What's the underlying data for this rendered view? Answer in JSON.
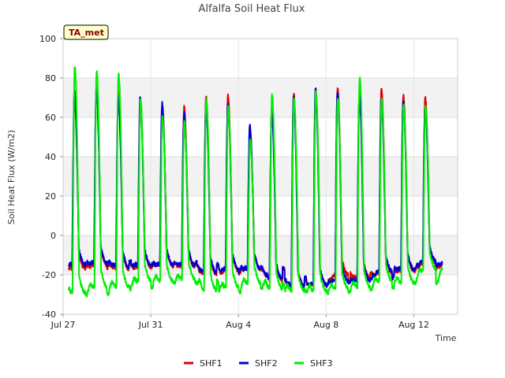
{
  "chart_data": {
    "type": "line",
    "title": "Alfalfa Soil Heat Flux",
    "xlabel": "Time",
    "ylabel": "Soil Heat Flux (W/m2)",
    "ylim": [
      -40,
      100
    ],
    "yticks": [
      -40,
      -20,
      0,
      20,
      40,
      60,
      80,
      100
    ],
    "xlim_days": [
      0,
      18
    ],
    "xticks": [
      {
        "day": 0,
        "label": "Jul 27"
      },
      {
        "day": 4,
        "label": "Jul 31"
      },
      {
        "day": 8,
        "label": "Aug 4"
      },
      {
        "day": 12,
        "label": "Aug 8"
      },
      {
        "day": 16,
        "label": "Aug 12"
      }
    ],
    "x_start_day": 0.25,
    "x_end_day": 17.3,
    "station_badge": "TA_met",
    "grid": true,
    "legend_position": "bottom-center",
    "x_unit_note": "day index from Jul 27; daily peak and nighttime minimum values",
    "series": [
      {
        "name": "SHF1",
        "color": "#e00000",
        "peaks": [
          70,
          75,
          74,
          69,
          65,
          65,
          70,
          71,
          53,
          66,
          72,
          74,
          75,
          72,
          75,
          71,
          70
        ],
        "troughs": [
          -17,
          -15,
          -17,
          -16,
          -15,
          -16,
          -20,
          -18,
          -17,
          -23,
          -26,
          -25,
          -20,
          -22,
          -19,
          -18,
          -14
        ]
      },
      {
        "name": "SHF2",
        "color": "#0000d0",
        "peaks": [
          73,
          75,
          70,
          70,
          67,
          62,
          66,
          67,
          56,
          63,
          70,
          74,
          73,
          71,
          69,
          68,
          65
        ],
        "troughs": [
          -15,
          -14,
          -16,
          -15,
          -15,
          -15,
          -19,
          -17,
          -17,
          -22,
          -26,
          -25,
          -23,
          -23,
          -18,
          -17,
          -13
        ]
      },
      {
        "name": "SHF3",
        "color": "#00ee00",
        "peaks": [
          86,
          83,
          82,
          69,
          60,
          58,
          69,
          65,
          48,
          71,
          70,
          73,
          70,
          80,
          69,
          66,
          66
        ],
        "troughs": [
          -29,
          -26,
          -26,
          -23,
          -23,
          -22,
          -28,
          -26,
          -24,
          -27,
          -28,
          -28,
          -27,
          -26,
          -23,
          -24,
          -17
        ]
      }
    ]
  }
}
